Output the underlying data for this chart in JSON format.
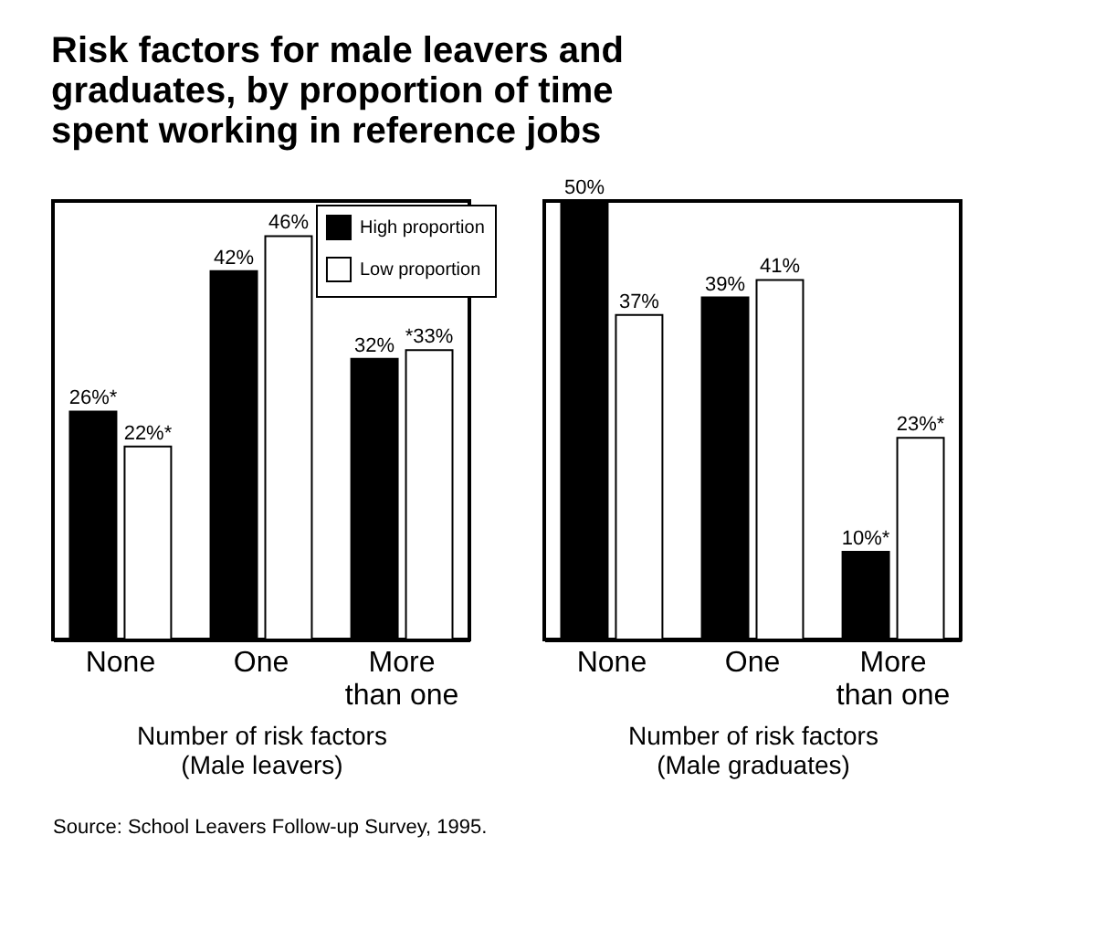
{
  "chart_data": [
    {
      "type": "bar",
      "title": "Risk factors for male leavers and graduates, by proportion of time spent working in reference jobs",
      "xlabel": "Number of risk factors\n(Male leavers)",
      "categories": [
        "None",
        "One",
        "More than one"
      ],
      "legend": "top right",
      "tick_labels": "x",
      "series": [
        {
          "name": "High proportion",
          "color": "#000000",
          "values": [
            26,
            42,
            32
          ],
          "value_labels": [
            "26%*",
            "42%",
            "32%"
          ]
        },
        {
          "name": "Low proportion",
          "color": "#ffffff",
          "values": [
            22,
            46,
            33
          ],
          "value_labels": [
            "22%*",
            "46%",
            "*33%"
          ]
        }
      ],
      "annotations": [
        "Source:  School Leavers Follow-up Survey, 1995."
      ]
    },
    {
      "type": "bar",
      "xlabel": "Number of risk factors\n(Male graduates)",
      "categories": [
        "None",
        "One",
        "More than one"
      ],
      "legend": false,
      "tick_labels": "x",
      "series": [
        {
          "name": "High proportion",
          "color": "#000000",
          "values": [
            50,
            39,
            10
          ],
          "value_labels": [
            "50%",
            "39%",
            "10%*"
          ]
        },
        {
          "name": "Low proportion",
          "color": "#ffffff",
          "values": [
            37,
            41,
            23
          ],
          "value_labels": [
            "37%",
            "41%",
            "23%*"
          ]
        }
      ]
    }
  ]
}
